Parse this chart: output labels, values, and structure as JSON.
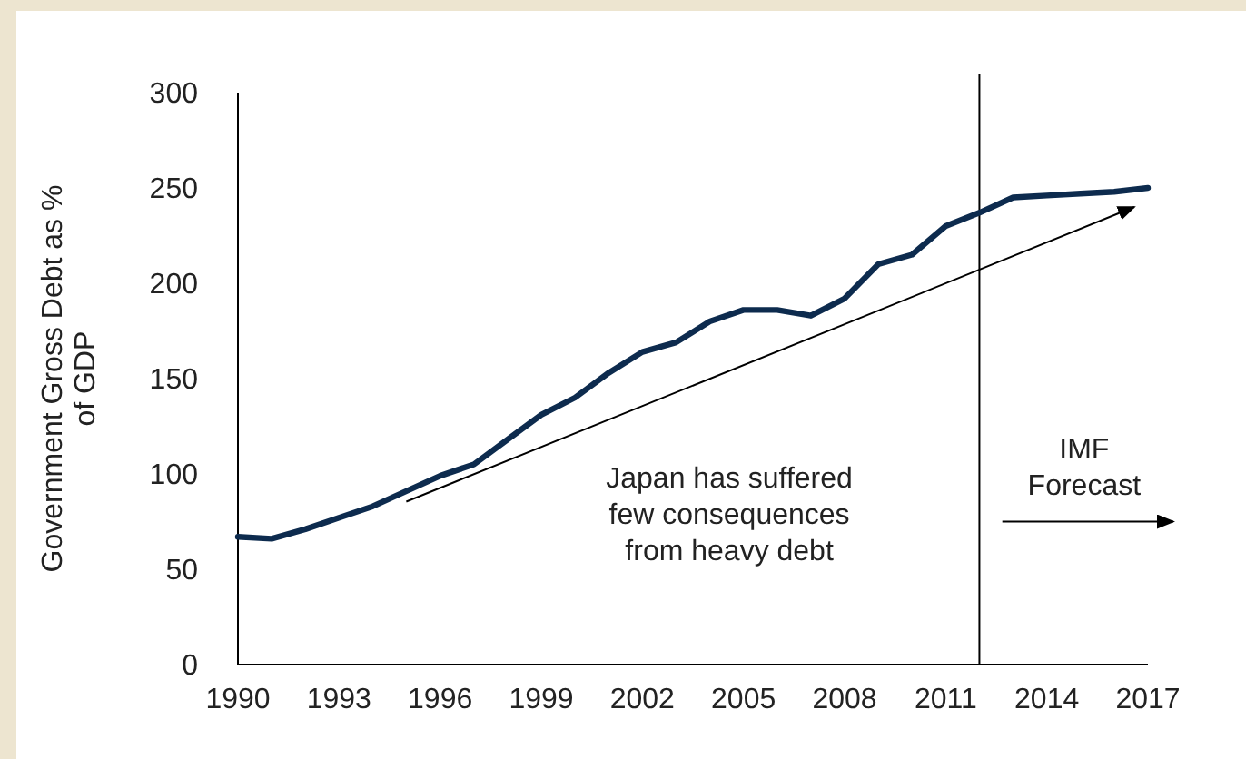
{
  "chart_data": {
    "type": "line",
    "ylabel": "Government Gross Debt as %\nof GDP",
    "x": [
      1990,
      1991,
      1992,
      1993,
      1994,
      1995,
      1996,
      1997,
      1998,
      1999,
      2000,
      2001,
      2002,
      2003,
      2004,
      2005,
      2006,
      2007,
      2008,
      2009,
      2010,
      2011,
      2012,
      2013,
      2014,
      2015,
      2016,
      2017
    ],
    "series": [
      {
        "color": "#0d2b4e",
        "values": [
          67,
          66,
          71,
          77,
          83,
          91,
          99,
          105,
          118,
          131,
          140,
          153,
          164,
          169,
          180,
          186,
          186,
          183,
          192,
          210,
          215,
          230,
          237,
          245,
          246,
          247,
          248,
          250
        ]
      }
    ],
    "xlim": [
      1990,
      2017
    ],
    "xticks": [
      1990,
      1993,
      1996,
      1999,
      2002,
      2005,
      2008,
      2011,
      2014,
      2017
    ],
    "ylim": [
      0,
      300
    ],
    "yticks": [
      0,
      50,
      100,
      150,
      200,
      250,
      300
    ],
    "grid": false,
    "marker": "none",
    "line_style": "solid",
    "ref_lines": [
      {
        "axis": "x",
        "value": 2012,
        "color": "#000000"
      }
    ],
    "annotations": [
      "Japan has suffered\nfew consequences\nfrom heavy debt",
      "IMF\nForecast"
    ]
  }
}
